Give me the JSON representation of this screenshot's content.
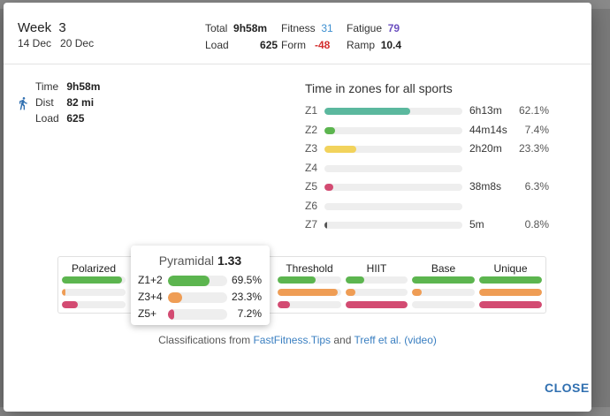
{
  "colors": {
    "green": "#5cb54f",
    "teal": "#5bb89e",
    "yellow": "#f2d35c",
    "orange": "#ef9d55",
    "red": "#d34b72",
    "fitness": "#3d8fd0",
    "fatigue": "#6b4fbf",
    "form": "#d32f2f",
    "link": "#3a7fc1"
  },
  "header": {
    "week_label": "Week",
    "week_number": "3",
    "date_start": "14 Dec",
    "date_end": "20 Dec",
    "total_label": "Total",
    "total_value": "9h58m",
    "load_label": "Load",
    "load_value": "625",
    "fitness_label": "Fitness",
    "fitness_value": "31",
    "form_label": "Form",
    "form_value": "-48",
    "fatigue_label": "Fatigue",
    "fatigue_value": "79",
    "ramp_label": "Ramp",
    "ramp_value": "10.4"
  },
  "summary": {
    "icon": "running-icon",
    "time_label": "Time",
    "time_value": "9h58m",
    "dist_label": "Dist",
    "dist_value": "82 mi",
    "load_label": "Load",
    "load_value": "625"
  },
  "zones": {
    "title": "Time in zones for all sports",
    "rows": [
      {
        "label": "Z1",
        "time": "6h13m",
        "pct": "62.1%",
        "value": 0.621,
        "color": "#5bb89e"
      },
      {
        "label": "Z2",
        "time": "44m14s",
        "pct": "7.4%",
        "value": 0.074,
        "color": "#5cb54f"
      },
      {
        "label": "Z3",
        "time": "2h20m",
        "pct": "23.3%",
        "value": 0.233,
        "color": "#f2d35c"
      },
      {
        "label": "Z4",
        "time": "",
        "pct": "",
        "value": 0,
        "color": "#ef9d55"
      },
      {
        "label": "Z5",
        "time": "38m8s",
        "pct": "6.3%",
        "value": 0.063,
        "color": "#d34b72"
      },
      {
        "label": "Z6",
        "time": "",
        "pct": "",
        "value": 0,
        "color": "#8b3fa8"
      },
      {
        "label": "Z7",
        "time": "5m",
        "pct": "0.8%",
        "value": 0.008,
        "color": "#555555"
      }
    ]
  },
  "classifications": [
    {
      "name": "Polarized",
      "bars": [
        0.95,
        0.06,
        0.25
      ]
    },
    {
      "name": "Threshold",
      "bars": [
        0.6,
        0.95,
        0.2
      ]
    },
    {
      "name": "HIIT",
      "bars": [
        0.3,
        0.15,
        1.0
      ]
    },
    {
      "name": "Base",
      "bars": [
        1.0,
        0.15,
        0.0
      ]
    },
    {
      "name": "Unique",
      "bars": [
        1.0,
        1.0,
        1.0
      ]
    }
  ],
  "pyramidal": {
    "name": "Pyramidal",
    "score": "1.33",
    "rows": [
      {
        "label": "Z1+2",
        "pct": "69.5%",
        "value": 0.695,
        "color": "#5cb54f"
      },
      {
        "label": "Z3+4",
        "pct": "23.3%",
        "value": 0.233,
        "color": "#ef9d55"
      },
      {
        "label": "Z5+",
        "pct": "7.2%",
        "value": 0.072,
        "color": "#d34b72"
      }
    ]
  },
  "credits": {
    "prefix": "Classifications from ",
    "link1": "FastFitness.Tips",
    "mid": " and ",
    "link2": "Treff et al.",
    "link3": "(video)"
  },
  "close_label": "CLOSE"
}
